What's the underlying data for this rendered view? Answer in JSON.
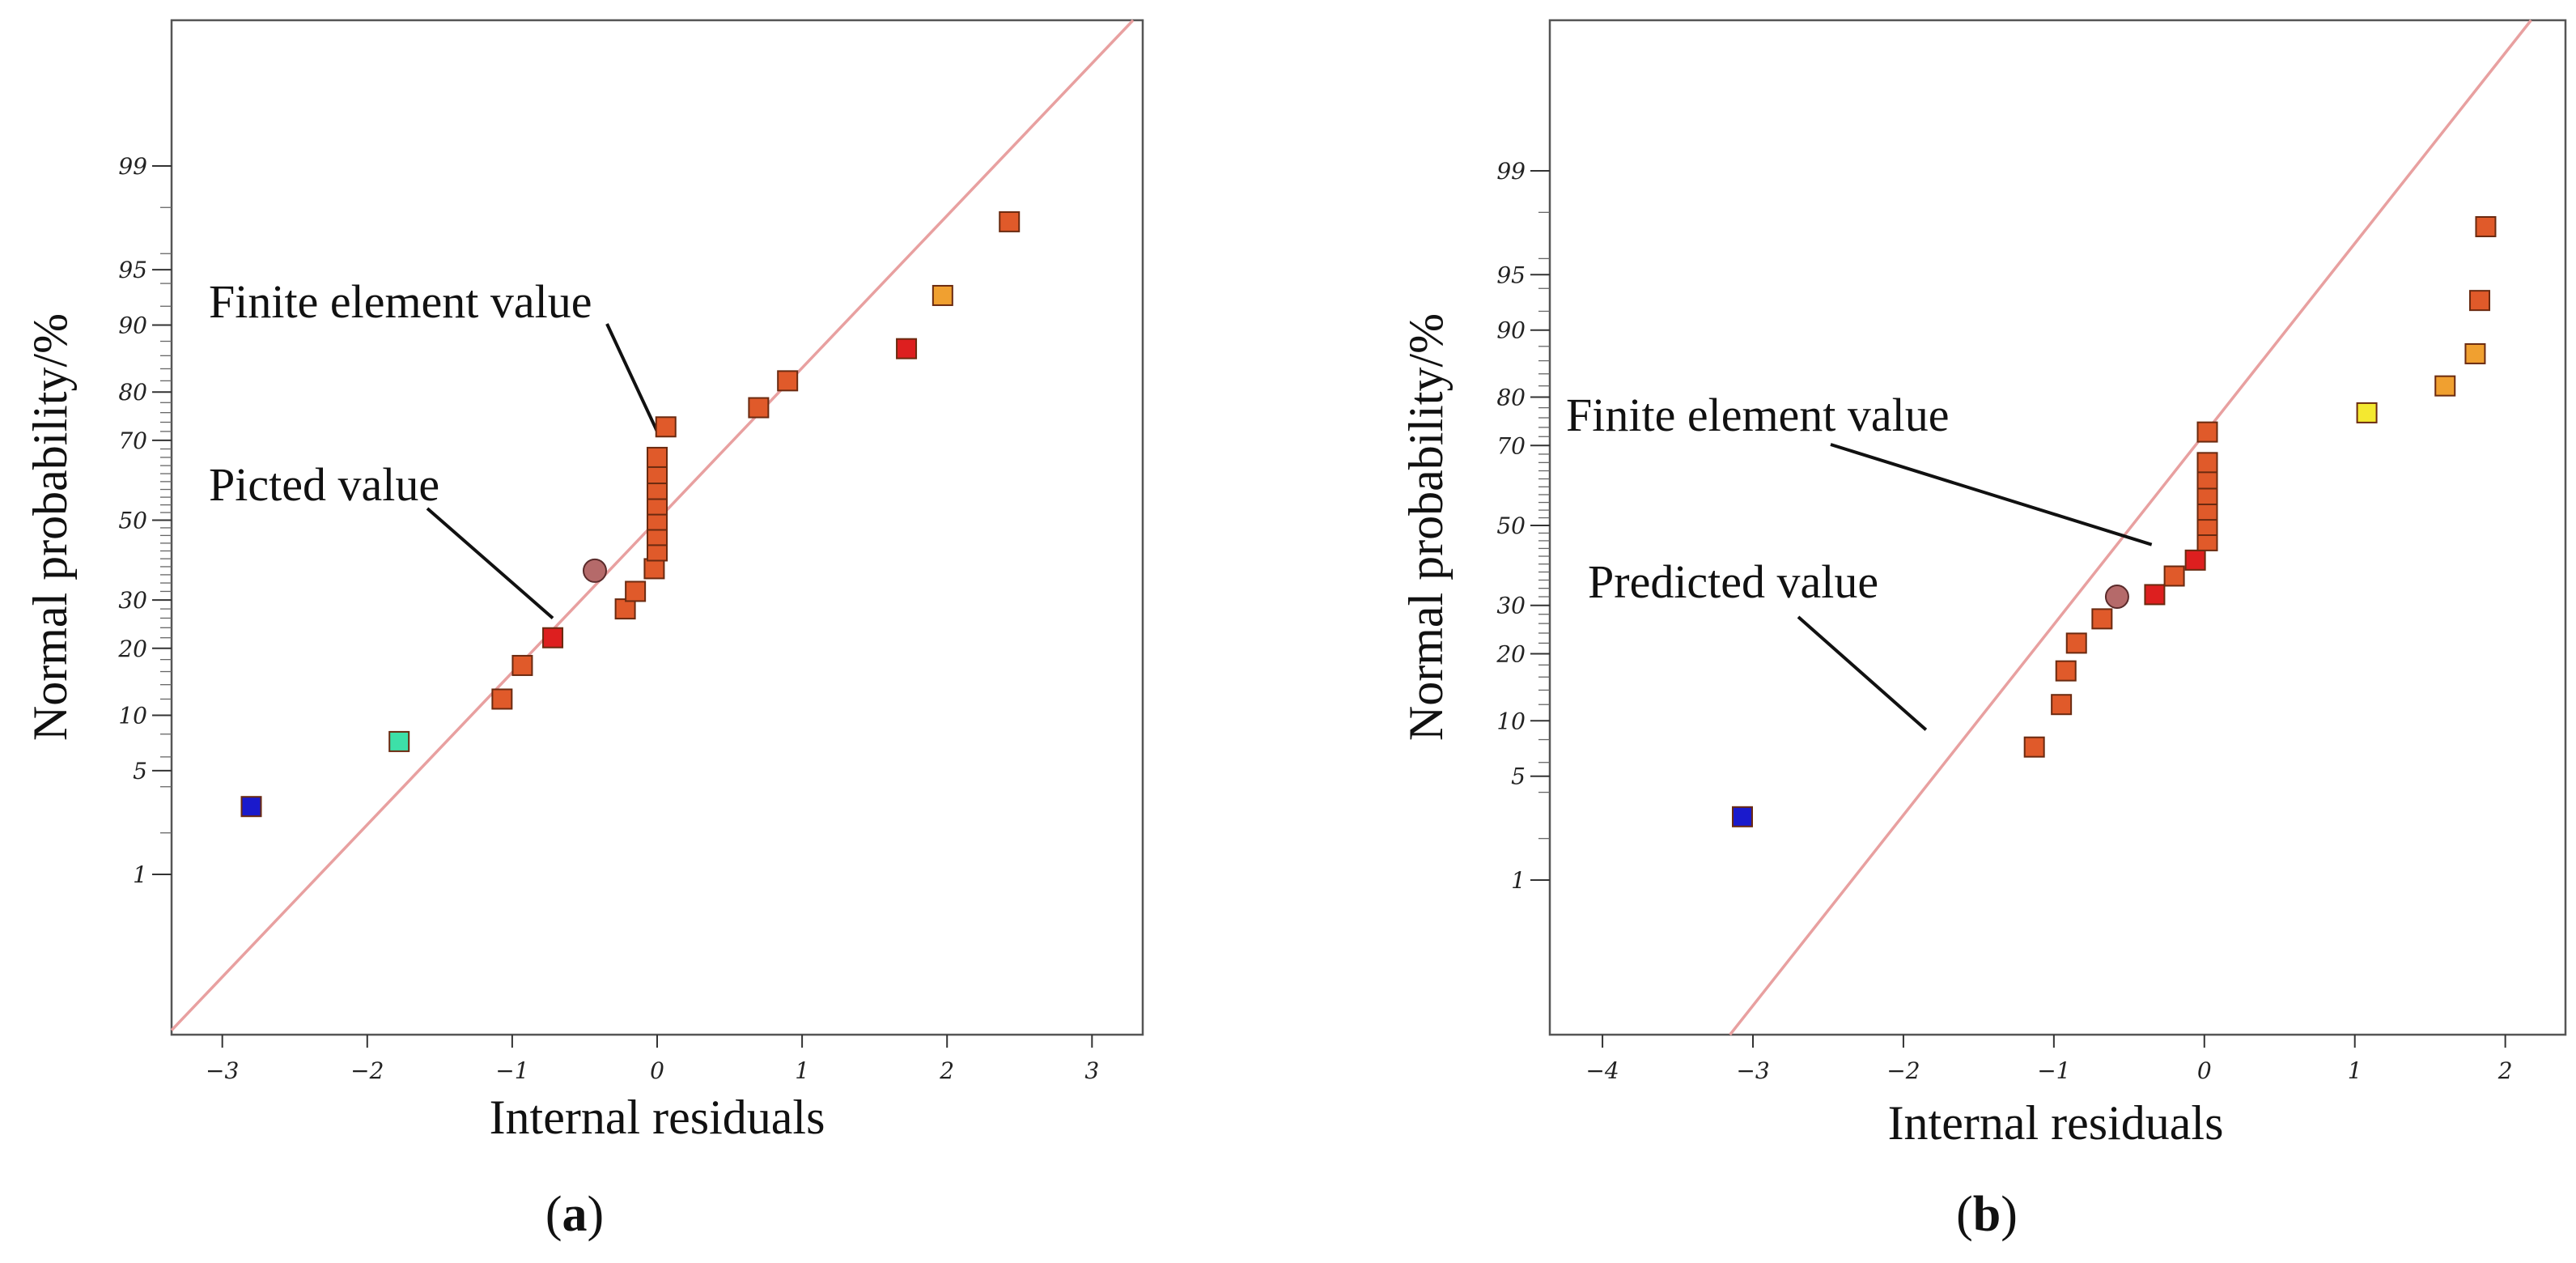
{
  "colors": {
    "fit_line": "#e8a0a0",
    "frame": "#555555"
  },
  "chart_data": [
    {
      "panel": "a",
      "type": "scatter",
      "subtype": "normal-probability-plot",
      "xlabel": "Internal residuals",
      "ylabel": "Normal probability/%",
      "xlim": [
        -3.35,
        3.35
      ],
      "x_ticks": [
        -3,
        -2,
        -1,
        0,
        1,
        2,
        3
      ],
      "x_tick_labels": [
        "−3",
        "−2",
        "−1",
        "0",
        "1",
        "2",
        "3"
      ],
      "y_ticks": [
        1,
        5,
        10,
        20,
        30,
        50,
        70,
        80,
        90,
        95,
        99
      ],
      "y_tick_labels": [
        "1",
        "5",
        "10",
        "20",
        "30",
        "50",
        "70",
        "80",
        "90",
        "95",
        "99"
      ],
      "fit_line": {
        "slope": 1.0,
        "intercept": 0.0
      },
      "points": [
        {
          "x": -2.8,
          "y": 3.0,
          "color": "#1a1acc",
          "shape": "square"
        },
        {
          "x": -1.78,
          "y": 7.3,
          "color": "#3de0a8",
          "shape": "square"
        },
        {
          "x": -1.07,
          "y": 12.0,
          "color": "#e05a2a",
          "shape": "square"
        },
        {
          "x": -0.93,
          "y": 17.0,
          "color": "#e05a2a",
          "shape": "square"
        },
        {
          "x": -0.72,
          "y": 22.0,
          "color": "#dd1f1f",
          "shape": "square"
        },
        {
          "x": -0.43,
          "y": 37.0,
          "color": "#b56a6a",
          "shape": "circle"
        },
        {
          "x": -0.22,
          "y": 28.0,
          "color": "#e05a2a",
          "shape": "square"
        },
        {
          "x": -0.15,
          "y": 32.0,
          "color": "#e05a2a",
          "shape": "square"
        },
        {
          "x": -0.02,
          "y": 37.5,
          "color": "#e05a2a",
          "shape": "square"
        },
        {
          "x": 0.0,
          "y": 42.0,
          "color": "#e05a2a",
          "shape": "square"
        },
        {
          "x": 0.0,
          "y": 46.0,
          "color": "#e05a2a",
          "shape": "square"
        },
        {
          "x": 0.0,
          "y": 50.0,
          "color": "#e05a2a",
          "shape": "square"
        },
        {
          "x": 0.0,
          "y": 54.0,
          "color": "#e05a2a",
          "shape": "square"
        },
        {
          "x": 0.0,
          "y": 58.0,
          "color": "#e05a2a",
          "shape": "square"
        },
        {
          "x": 0.0,
          "y": 62.0,
          "color": "#e05a2a",
          "shape": "square"
        },
        {
          "x": 0.0,
          "y": 66.0,
          "color": "#e05a2a",
          "shape": "square"
        },
        {
          "x": 0.06,
          "y": 73.0,
          "color": "#e05a2a",
          "shape": "square"
        },
        {
          "x": 0.7,
          "y": 77.0,
          "color": "#e05a2a",
          "shape": "square"
        },
        {
          "x": 0.9,
          "y": 82.0,
          "color": "#e05a2a",
          "shape": "square"
        },
        {
          "x": 1.72,
          "y": 87.0,
          "color": "#dd1f1f",
          "shape": "square"
        },
        {
          "x": 1.97,
          "y": 93.0,
          "color": "#f0a030",
          "shape": "square"
        },
        {
          "x": 2.43,
          "y": 97.5,
          "color": "#e05a2a",
          "shape": "square"
        }
      ],
      "annotations": [
        {
          "text": "Finite element value",
          "target": [
            0.0,
            72.0
          ]
        },
        {
          "text": "Picted value",
          "target": [
            -0.72,
            26.0
          ]
        }
      ]
    },
    {
      "panel": "b",
      "type": "scatter",
      "subtype": "normal-probability-plot",
      "xlabel": "Internal residuals",
      "ylabel": "Normal probability/%",
      "xlim": [
        -4.35,
        2.4
      ],
      "x_ticks": [
        -4,
        -3,
        -2,
        -1,
        0,
        1,
        2
      ],
      "x_tick_labels": [
        "−4",
        "−3",
        "−2",
        "−1",
        "0",
        "1",
        "2"
      ],
      "y_ticks": [
        1,
        5,
        10,
        20,
        30,
        50,
        70,
        80,
        90,
        95,
        99
      ],
      "y_tick_labels": [
        "1",
        "5",
        "10",
        "20",
        "30",
        "50",
        "70",
        "80",
        "90",
        "95",
        "99"
      ],
      "fit_line": {
        "slope": 1.25,
        "intercept": 0.6
      },
      "points": [
        {
          "x": -3.07,
          "y": 2.8,
          "color": "#1a1acc",
          "shape": "square"
        },
        {
          "x": -1.13,
          "y": 7.3,
          "color": "#e05a2a",
          "shape": "square"
        },
        {
          "x": -0.95,
          "y": 12.0,
          "color": "#e05a2a",
          "shape": "square"
        },
        {
          "x": -0.92,
          "y": 17.0,
          "color": "#e05a2a",
          "shape": "square"
        },
        {
          "x": -0.85,
          "y": 22.0,
          "color": "#e05a2a",
          "shape": "square"
        },
        {
          "x": -0.68,
          "y": 27.0,
          "color": "#e05a2a",
          "shape": "square"
        },
        {
          "x": -0.58,
          "y": 32.0,
          "color": "#b56a6a",
          "shape": "circle"
        },
        {
          "x": -0.33,
          "y": 32.5,
          "color": "#dd1f1f",
          "shape": "square"
        },
        {
          "x": -0.2,
          "y": 37.0,
          "color": "#e05a2a",
          "shape": "square"
        },
        {
          "x": -0.06,
          "y": 41.0,
          "color": "#dd1f1f",
          "shape": "square"
        },
        {
          "x": 0.02,
          "y": 46.0,
          "color": "#e05a2a",
          "shape": "square"
        },
        {
          "x": 0.02,
          "y": 50.0,
          "color": "#e05a2a",
          "shape": "square"
        },
        {
          "x": 0.02,
          "y": 54.0,
          "color": "#e05a2a",
          "shape": "square"
        },
        {
          "x": 0.02,
          "y": 58.0,
          "color": "#e05a2a",
          "shape": "square"
        },
        {
          "x": 0.02,
          "y": 62.0,
          "color": "#e05a2a",
          "shape": "square"
        },
        {
          "x": 0.02,
          "y": 66.0,
          "color": "#e05a2a",
          "shape": "square"
        },
        {
          "x": 0.02,
          "y": 73.0,
          "color": "#e05a2a",
          "shape": "square"
        },
        {
          "x": 1.08,
          "y": 77.0,
          "color": "#f4e830",
          "shape": "square"
        },
        {
          "x": 1.6,
          "y": 82.0,
          "color": "#f0a030",
          "shape": "square"
        },
        {
          "x": 1.8,
          "y": 87.0,
          "color": "#f0a030",
          "shape": "square"
        },
        {
          "x": 1.83,
          "y": 93.0,
          "color": "#e05a2a",
          "shape": "square"
        },
        {
          "x": 1.87,
          "y": 97.5,
          "color": "#e05a2a",
          "shape": "square"
        }
      ],
      "annotations": [
        {
          "text": "Finite element value",
          "target": [
            -0.35,
            45.0
          ]
        },
        {
          "text": "Predicted value",
          "target": [
            -1.85,
            9.0
          ]
        }
      ]
    }
  ],
  "panel_labels": [
    {
      "prefix": "(",
      "letter": "a",
      "suffix": ")"
    },
    {
      "prefix": "(",
      "letter": "b",
      "suffix": ")"
    }
  ]
}
